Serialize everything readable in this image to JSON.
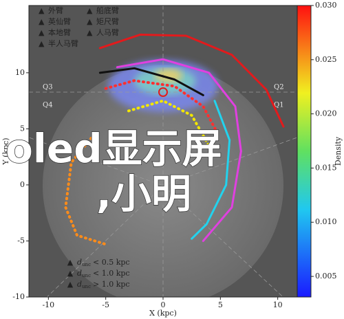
{
  "chart_data": {
    "type": "line",
    "xlabel": "X (kpc)",
    "ylabel": "Y (kpc)",
    "xlim": [
      -11.7,
      11.7
    ],
    "ylim": [
      -10,
      16
    ],
    "xticks": [
      -10,
      -5,
      0,
      5,
      10
    ],
    "yticks": [
      -10,
      -5,
      0,
      5,
      10
    ],
    "quadrants": [
      "Q3",
      "Q2",
      "Q4",
      "Q1"
    ],
    "series": [
      {
        "name": "外臂",
        "color": "#e31a1c",
        "style": "solid",
        "x": [
          -5.5,
          -2,
          2,
          6,
          9,
          10.5
        ],
        "y": [
          12.2,
          13.4,
          13.3,
          11.6,
          8.5,
          5.2
        ]
      },
      {
        "name": "英仙臂",
        "color": "#e040e0",
        "style": "solid",
        "x": [
          -4,
          0,
          4,
          6.3,
          6.8,
          6,
          3.5
        ],
        "y": [
          10.5,
          11.2,
          10,
          7,
          3,
          -2,
          -5
        ]
      },
      {
        "name": "本地臂",
        "color": "#111111",
        "style": "solid",
        "x": [
          -5.5,
          -2.5,
          1,
          3.5
        ],
        "y": [
          10,
          10.4,
          9.4,
          8
        ]
      },
      {
        "name": "半人马臂",
        "color": "#f2e600",
        "style": "dotted",
        "x": [
          -3,
          0,
          2.5,
          4
        ],
        "y": [
          6.6,
          7.5,
          6.2,
          3.5
        ]
      },
      {
        "name": "船底臂",
        "color": "#ff3030",
        "style": "dotted",
        "x": [
          -5,
          -2.5,
          1,
          3.5,
          4.8
        ],
        "y": [
          8.6,
          9.3,
          8.8,
          7,
          4.5
        ]
      },
      {
        "name": "矩尺臂",
        "color": "#ff8c1a",
        "style": "dotted",
        "x": [
          -6,
          -8,
          -8.5,
          -7.5,
          -5
        ],
        "y": [
          4.5,
          2,
          -2,
          -4.5,
          -5.3
        ]
      },
      {
        "name": "人马臂",
        "color": "#22d3ee",
        "style": "solid",
        "x": [
          4.5,
          5.8,
          5.5,
          3.8,
          2.5
        ],
        "y": [
          7.5,
          4,
          0,
          -3.5,
          -4.8
        ]
      }
    ],
    "colorbar": {
      "label": "Density",
      "lim": [
        0.0031,
        0.03
      ],
      "ticks": [
        {
          "value": 0.005,
          "label": "0.005"
        },
        {
          "value": 0.01,
          "label": "0.010"
        },
        {
          "value": 0.015,
          "label": "0.015"
        },
        {
          "value": 0.02,
          "label": "0.020"
        },
        {
          "value": 0.025,
          "label": "0.025"
        },
        {
          "value": 0.03,
          "label": "0.030"
        }
      ]
    },
    "marker_legend": [
      {
        "symbol": "d",
        "sub": "unc",
        "text": "< 0.5 kpc"
      },
      {
        "symbol": "d",
        "sub": "unc",
        "text": "< 1.0 kpc"
      },
      {
        "symbol": "d",
        "sub": "unc",
        "text": "> 1.0 kpc"
      }
    ],
    "overlay": [
      "oled显示屏",
      ",小明"
    ]
  }
}
